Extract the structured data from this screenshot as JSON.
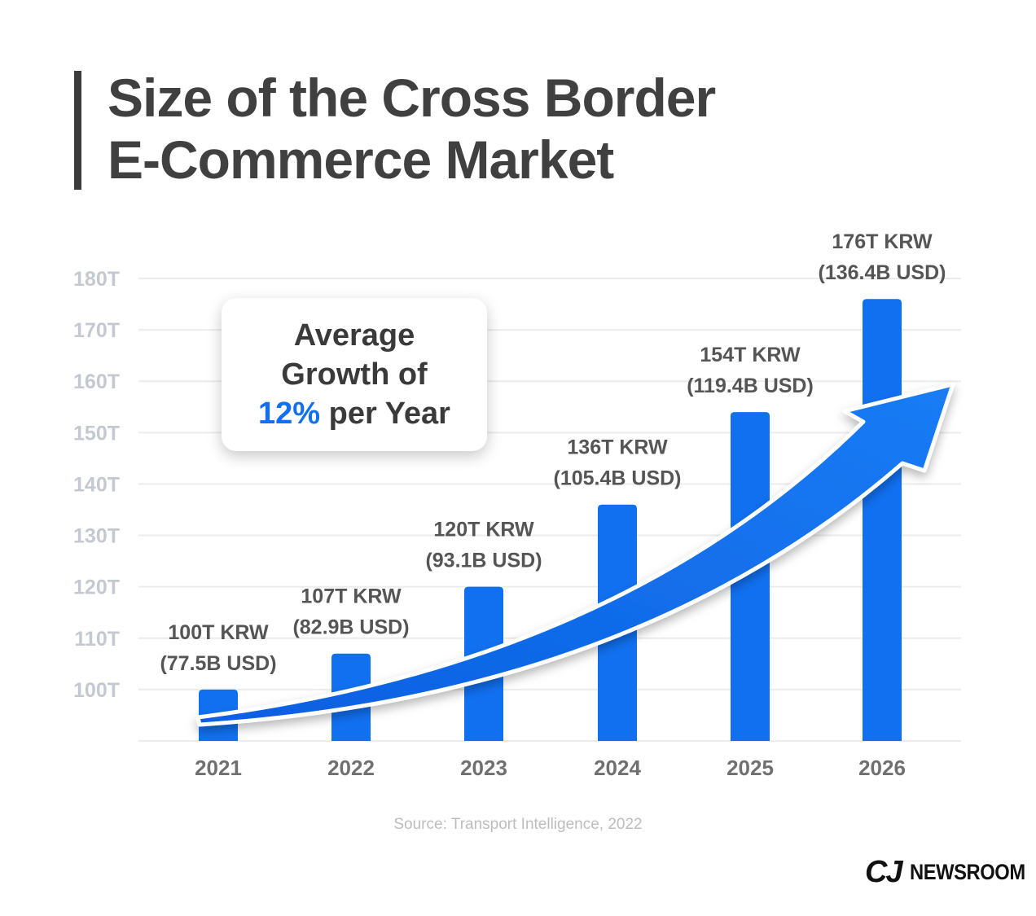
{
  "title": {
    "line1": "Size of the Cross Border",
    "line2": "E-Commerce Market"
  },
  "callout": {
    "line1": "Average",
    "line2": "Growth of",
    "highlight": "12%",
    "line3_rest": " per Year"
  },
  "source": "Source: Transport Intelligence, 2022",
  "logo": {
    "mark": "CJ",
    "text": "NEWSROOM"
  },
  "colors": {
    "bar": "#1170f0",
    "accent": "#1170f0",
    "title": "#404040",
    "axis_text": "#c4c8d0",
    "label_text": "#555555",
    "grid": "#ececec"
  },
  "chart_data": {
    "type": "bar",
    "categories": [
      "2021",
      "2022",
      "2023",
      "2024",
      "2025",
      "2026"
    ],
    "values": [
      100,
      107,
      120,
      136,
      154,
      176
    ],
    "unit": "T",
    "data_labels": [
      [
        "100T KRW",
        "(77.5B USD)"
      ],
      [
        "107T KRW",
        "(82.9B USD)"
      ],
      [
        "120T KRW",
        "(93.1B USD)"
      ],
      [
        "136T KRW",
        "(105.4B USD)"
      ],
      [
        "154T KRW",
        "(119.4B USD)"
      ],
      [
        "176T KRW",
        "(136.4B USD)"
      ]
    ],
    "yticks": [
      "100T",
      "110T",
      "120T",
      "130T",
      "140T",
      "150T",
      "160T",
      "170T",
      "180T"
    ],
    "ytick_values": [
      100,
      110,
      120,
      130,
      140,
      150,
      160,
      170,
      180
    ],
    "ylim": [
      90,
      180
    ],
    "grid": true,
    "annotation": "upward trend arrow"
  }
}
